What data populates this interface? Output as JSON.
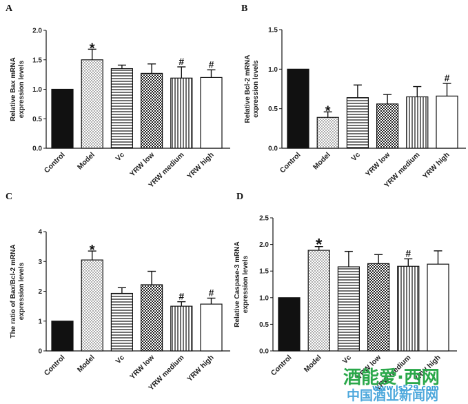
{
  "chart_data": [
    {
      "type": "bar",
      "panel_label": "A",
      "ylabel": "Relative Bax mRNA expression levels",
      "ylim": [
        0,
        2.0
      ],
      "yticks": [
        "0.0",
        "0.5",
        "1.0",
        "1.5",
        "2.0"
      ],
      "categories": [
        "Control",
        "Model",
        "Vc",
        "YRW low",
        "YRW medium",
        "YRW high"
      ],
      "values": [
        1.0,
        1.5,
        1.35,
        1.27,
        1.19,
        1.2
      ],
      "errors": [
        0.0,
        0.18,
        0.06,
        0.16,
        0.19,
        0.13
      ],
      "marks": [
        "",
        "*",
        "",
        "",
        "#",
        "#"
      ]
    },
    {
      "type": "bar",
      "panel_label": "B",
      "ylabel": "Relative Bcl-2 mRNA expression levels",
      "ylim": [
        0,
        1.5
      ],
      "yticks": [
        "0.0",
        "0.5",
        "1.0",
        "1.5"
      ],
      "categories": [
        "Control",
        "Model",
        "Vc",
        "YRW low",
        "YRW medium",
        "YRW high"
      ],
      "values": [
        1.0,
        0.39,
        0.64,
        0.56,
        0.65,
        0.66
      ],
      "errors": [
        0.0,
        0.07,
        0.16,
        0.12,
        0.13,
        0.16
      ],
      "marks": [
        "",
        "*",
        "",
        "",
        "",
        "#"
      ]
    },
    {
      "type": "bar",
      "panel_label": "C",
      "ylabel": "The ratio of Bax/Bcl-2 mRNA expression levels",
      "ylim": [
        0,
        4
      ],
      "yticks": [
        "0",
        "1",
        "2",
        "3",
        "4"
      ],
      "categories": [
        "Control",
        "Model",
        "Vc",
        "YRW low",
        "YRW medium",
        "YRW high"
      ],
      "values": [
        1.0,
        3.05,
        1.93,
        2.22,
        1.5,
        1.57
      ],
      "errors": [
        0.0,
        0.3,
        0.19,
        0.45,
        0.15,
        0.2
      ],
      "marks": [
        "",
        "*",
        "",
        "",
        "#",
        "#"
      ]
    },
    {
      "type": "bar",
      "panel_label": "D",
      "ylabel": "Relative Caspase-3 mRNA expression levels",
      "ylim": [
        0,
        2.5
      ],
      "yticks": [
        "0.0",
        "0.5",
        "1.0",
        "1.5",
        "2.0",
        "2.5"
      ],
      "categories": [
        "Control",
        "Model",
        "Vc",
        "YRW low",
        "YRW medium",
        "YRW high"
      ],
      "values": [
        1.0,
        1.89,
        1.58,
        1.64,
        1.59,
        1.63
      ],
      "errors": [
        0.0,
        0.07,
        0.29,
        0.17,
        0.14,
        0.25
      ],
      "marks": [
        "",
        "*",
        "",
        "",
        "#",
        ""
      ]
    }
  ],
  "watermark": {
    "line1": "酒能爱·西网",
    "line2": "www.js529.com",
    "line3": "中国酒业新闻网",
    "color_green": "#2aa84a",
    "color_blue": "#3a9fd8"
  },
  "patterns": [
    "solid",
    "dots",
    "hlines",
    "checker",
    "vlines",
    "open"
  ]
}
